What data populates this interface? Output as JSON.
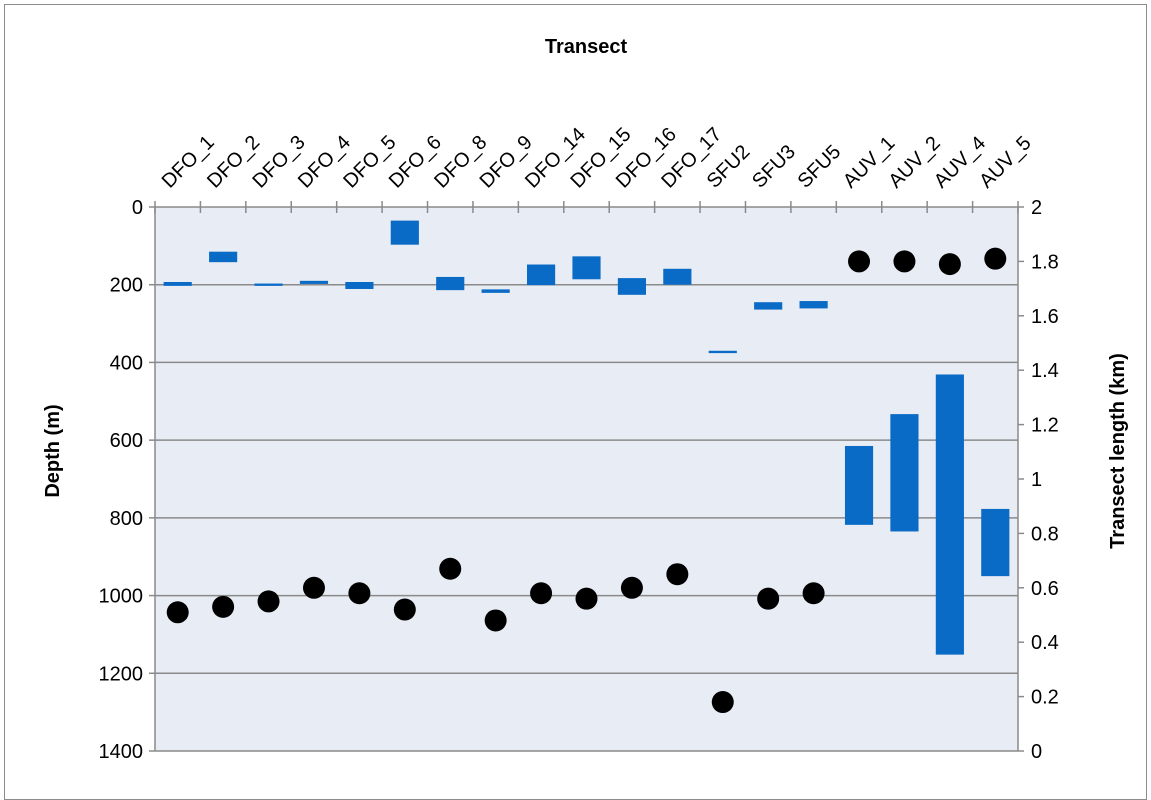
{
  "chart_data": {
    "type": "floating-bar + scatter",
    "title": "Transect",
    "ylabel": "Depth (m)",
    "y2label": "Transect length (km)",
    "categories": [
      "DFO_1",
      "DFO_2",
      "DFO_3",
      "DFO_4",
      "DFO_5",
      "DFO_6",
      "DFO_8",
      "DFO_9",
      "DFO_14",
      "DFO_15",
      "DFO_16",
      "DFO_17",
      "SFU2",
      "SFU3",
      "SFU5",
      "AUV_1",
      "AUV_2",
      "AUV_4",
      "AUV_5"
    ],
    "ylim": [
      0,
      1400
    ],
    "y_reversed": true,
    "yticks": [
      0,
      200,
      400,
      600,
      800,
      1000,
      1200,
      1400
    ],
    "y2lim": [
      0,
      2
    ],
    "y2ticks": [
      "0",
      "0.2",
      "0.4",
      "0.6",
      "0.8",
      "1",
      "1.2",
      "1.4",
      "1.6",
      "1.8",
      "2"
    ],
    "grid": true,
    "series": [
      {
        "kind": "depth-range-bars",
        "color": "#0a6bc7",
        "ranges": [
          [
            193,
            203
          ],
          [
            115,
            142
          ],
          [
            197,
            203
          ],
          [
            190,
            198
          ],
          [
            193,
            211
          ],
          [
            35,
            97
          ],
          [
            180,
            214
          ],
          [
            212,
            221
          ],
          [
            148,
            201
          ],
          [
            127,
            186
          ],
          [
            183,
            226
          ],
          [
            159,
            200
          ],
          [
            370,
            376
          ],
          [
            245,
            264
          ],
          [
            242,
            261
          ],
          [
            615,
            818
          ],
          [
            533,
            835
          ],
          [
            431,
            1152
          ],
          [
            777,
            950
          ]
        ]
      },
      {
        "kind": "length-points",
        "color": "#000000",
        "values": [
          0.51,
          0.53,
          0.55,
          0.6,
          0.58,
          0.52,
          0.67,
          0.48,
          0.58,
          0.56,
          0.6,
          0.65,
          0.18,
          0.56,
          0.58,
          1.8,
          1.8,
          1.79,
          1.81
        ]
      }
    ]
  }
}
